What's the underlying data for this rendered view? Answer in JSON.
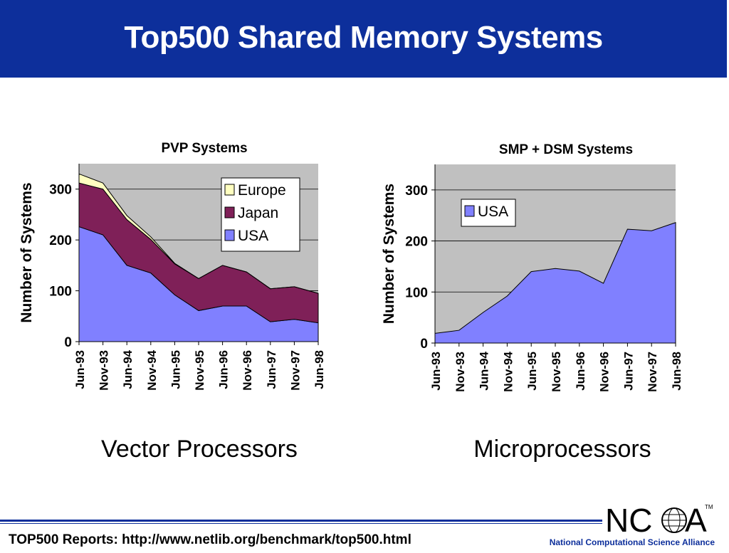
{
  "header": {
    "title": "Top500 Shared Memory Systems"
  },
  "captions": {
    "left": "Vector Processors",
    "right": "Microprocessors"
  },
  "footer": {
    "source": "TOP500 Reports:  http://www.netlib.org/benchmark/top500.html",
    "org": "National Computational Science Alliance"
  },
  "logo": {
    "text_left": "NC",
    "text_right": "A",
    "tm": "TM"
  },
  "colors": {
    "brand": "#0d2f9b",
    "plot_bg": "#c0c0c0",
    "usa": "#8080ff",
    "japan": "#7f2058",
    "europe": "#ffffc0"
  },
  "chart_data": [
    {
      "type": "area",
      "stacked": true,
      "title": "PVP Systems",
      "xlabel": "",
      "ylabel": "Number of Systems",
      "categories": [
        "Jun-93",
        "Nov-93",
        "Jun-94",
        "Nov-94",
        "Jun-95",
        "Nov-95",
        "Jun-96",
        "Nov-96",
        "Jun-97",
        "Nov-97",
        "Jun-98"
      ],
      "ylim": [
        0,
        350
      ],
      "yticks": [
        0,
        100,
        200,
        300
      ],
      "grid": true,
      "legend": "top-right",
      "series": [
        {
          "name": "USA",
          "color": "#8080ff",
          "values": [
            226,
            210,
            150,
            135,
            92,
            61,
            70,
            70,
            39,
            44,
            37
          ]
        },
        {
          "name": "Japan",
          "color": "#7f2058",
          "values": [
            86,
            90,
            90,
            66,
            61,
            63,
            80,
            67,
            65,
            64,
            58
          ]
        },
        {
          "name": "Europe",
          "color": "#ffffc0",
          "values": [
            18,
            12,
            8,
            5,
            1,
            0,
            0,
            0,
            0,
            0,
            0
          ]
        }
      ],
      "legend_order": [
        "Europe",
        "Japan",
        "USA"
      ]
    },
    {
      "type": "area",
      "stacked": true,
      "title": "SMP + DSM Systems",
      "xlabel": "",
      "ylabel": "Number of Systems",
      "categories": [
        "Jun-93",
        "Nov-93",
        "Jun-94",
        "Nov-94",
        "Jun-95",
        "Nov-95",
        "Jun-96",
        "Nov-96",
        "Jun-97",
        "Nov-97",
        "Jun-98"
      ],
      "ylim": [
        0,
        350
      ],
      "yticks": [
        0,
        100,
        200,
        300
      ],
      "grid": true,
      "legend": "top-left",
      "series": [
        {
          "name": "USA",
          "color": "#8080ff",
          "values": [
            19,
            25,
            60,
            92,
            140,
            146,
            141,
            117,
            223,
            220,
            236
          ]
        }
      ],
      "legend_order": [
        "USA"
      ]
    }
  ]
}
